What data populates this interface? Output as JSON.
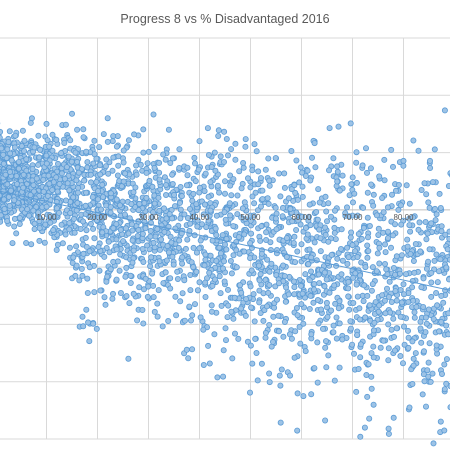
{
  "chart_data": {
    "type": "scatter",
    "title": "Progress  8  vs  %  Disadvantaged  2016",
    "xlabel": "",
    "ylabel": "",
    "xlim": [
      -5,
      95
    ],
    "ylim": [
      -2.0,
      1.5
    ],
    "x_ticks": [
      10,
      20,
      30,
      40,
      50,
      60,
      70,
      80
    ],
    "x_tick_labels": [
      "10.00",
      "20.00",
      "30.00",
      "40.00",
      "50.00",
      "60.00",
      "70.00",
      "80.00"
    ],
    "y_gridlines": [
      1.5,
      1.0,
      0.5,
      -0.5,
      -1.0,
      -1.5,
      -2.0
    ],
    "grid": true,
    "legend": "none",
    "marker_color": "#5b9bd5",
    "marker_fill": "#9dc3e6",
    "trendline": {
      "type": "linear",
      "x": [
        -5,
        95
      ],
      "y": [
        0.22,
        -0.76
      ]
    },
    "series": [
      {
        "values_generated": "dense cloud of approximately 3000 school points",
        "x": [
          3,
          5,
          8,
          11,
          14,
          17,
          20,
          23,
          26,
          29,
          32,
          35,
          38,
          41,
          44,
          47,
          50,
          53,
          56,
          59,
          62,
          65,
          68,
          71,
          74,
          77,
          80,
          83,
          86,
          89,
          92,
          94,
          6,
          9,
          12,
          15,
          18,
          21,
          24,
          27,
          30,
          33,
          36,
          39,
          42,
          45,
          48,
          51,
          54,
          57,
          60,
          63,
          66,
          69,
          72,
          75,
          78,
          81,
          84,
          87,
          90,
          4,
          7,
          10,
          13,
          16,
          19,
          22,
          25,
          28,
          31,
          34,
          37,
          40,
          43,
          46,
          49,
          52,
          55,
          58,
          61,
          64,
          67,
          70,
          73,
          76,
          79,
          82,
          85,
          88,
          91,
          7,
          17,
          27,
          37,
          47,
          57,
          67,
          77,
          87,
          12,
          22,
          32,
          42,
          52,
          62,
          72,
          82,
          92,
          15,
          25,
          35,
          45,
          55,
          65,
          75,
          85,
          18,
          28,
          38,
          48,
          58,
          68,
          78,
          88,
          20,
          30,
          40,
          50,
          60,
          70,
          80,
          90,
          24,
          34,
          44,
          54,
          64,
          74,
          84,
          94
        ],
        "y": [
          0.45,
          0.3,
          0.55,
          0.2,
          0.4,
          0.35,
          0.1,
          0.6,
          0.25,
          0.5,
          0.05,
          0.45,
          0.15,
          0.3,
          0.4,
          0.05,
          -0.05,
          0.35,
          -0.15,
          0.1,
          -0.25,
          -0.1,
          -0.35,
          -0.05,
          -0.5,
          -0.2,
          -0.65,
          -0.3,
          -0.9,
          -0.6,
          -1.0,
          -0.75,
          0.1,
          0.0,
          0.25,
          -0.1,
          0.15,
          -0.05,
          0.3,
          0.0,
          0.2,
          -0.15,
          0.35,
          0.05,
          -0.05,
          0.25,
          -0.25,
          0.15,
          -0.35,
          0.0,
          -0.45,
          -0.15,
          -0.6,
          -0.4,
          -0.75,
          -0.55,
          -0.95,
          -0.7,
          -1.1,
          -0.85,
          -1.25,
          0.65,
          0.6,
          0.75,
          0.5,
          0.7,
          0.55,
          0.8,
          0.45,
          0.65,
          0.4,
          0.7,
          0.35,
          0.6,
          0.5,
          0.3,
          0.55,
          0.25,
          0.45,
          0.2,
          0.35,
          0.1,
          0.3,
          -0.05,
          0.15,
          -0.2,
          0.0,
          -0.4,
          -0.15,
          -0.55,
          -0.35,
          -0.3,
          -0.45,
          -0.25,
          -0.6,
          -0.5,
          -0.8,
          -0.65,
          -1.0,
          -1.2,
          -0.35,
          -0.55,
          -0.7,
          -0.4,
          -0.9,
          -0.75,
          -1.15,
          -1.3,
          -1.45,
          -0.2,
          -0.4,
          -0.3,
          -0.65,
          -0.55,
          -0.85,
          -1.05,
          -1.5,
          -0.6,
          -0.75,
          -0.85,
          -0.7,
          -1.05,
          -1.1,
          -1.25,
          -1.35,
          -0.1,
          -0.25,
          -0.15,
          -0.4,
          -0.3,
          -0.55,
          -0.8,
          -0.95,
          -0.45,
          -0.6,
          -0.5,
          -0.75,
          -0.9,
          -1.0,
          -1.4,
          -1.6
        ]
      }
    ]
  }
}
